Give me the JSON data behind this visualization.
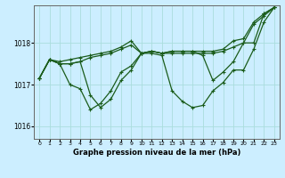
{
  "title": "Graphe pression niveau de la mer (hPa)",
  "xlabel_ticks": [
    0,
    1,
    2,
    3,
    4,
    5,
    6,
    7,
    8,
    9,
    10,
    11,
    12,
    13,
    14,
    15,
    16,
    17,
    18,
    19,
    20,
    21,
    22,
    23
  ],
  "ylim": [
    1015.7,
    1018.9
  ],
  "yticks": [
    1016,
    1017,
    1018
  ],
  "background_color": "#cceeff",
  "grid_color": "#aadddd",
  "line_color": "#1a5c1a",
  "series": [
    [
      1017.15,
      1017.6,
      1017.55,
      1017.6,
      1017.65,
      1017.7,
      1017.75,
      1017.8,
      1017.9,
      1018.05,
      1017.75,
      1017.8,
      1017.75,
      1017.8,
      1017.8,
      1017.8,
      1017.8,
      1017.8,
      1017.85,
      1018.05,
      1018.1,
      1018.5,
      1018.7,
      1018.85
    ],
    [
      1017.15,
      1017.6,
      1017.5,
      1017.5,
      1017.55,
      1016.75,
      1016.45,
      1016.65,
      1017.1,
      1017.35,
      1017.75,
      1017.75,
      1017.7,
      1016.85,
      1016.6,
      1016.45,
      1016.5,
      1016.85,
      1017.05,
      1017.35,
      1017.35,
      1017.85,
      1018.5,
      1018.85
    ],
    [
      1017.15,
      1017.6,
      1017.5,
      1017.0,
      1016.9,
      1016.4,
      1016.55,
      1016.85,
      1017.3,
      1017.45,
      1017.75,
      1017.8,
      1017.75,
      1017.8,
      1017.8,
      1017.8,
      1017.7,
      1017.1,
      1017.3,
      1017.55,
      1018.0,
      1018.0,
      1018.7,
      1018.85
    ],
    [
      1017.15,
      1017.6,
      1017.5,
      1017.5,
      1017.55,
      1017.65,
      1017.7,
      1017.75,
      1017.85,
      1017.95,
      1017.75,
      1017.8,
      1017.75,
      1017.75,
      1017.75,
      1017.75,
      1017.75,
      1017.75,
      1017.8,
      1017.9,
      1018.0,
      1018.45,
      1018.65,
      1018.85
    ]
  ],
  "marker": "+",
  "markersize": 3,
  "linewidth": 0.9,
  "markeredgewidth": 0.8
}
